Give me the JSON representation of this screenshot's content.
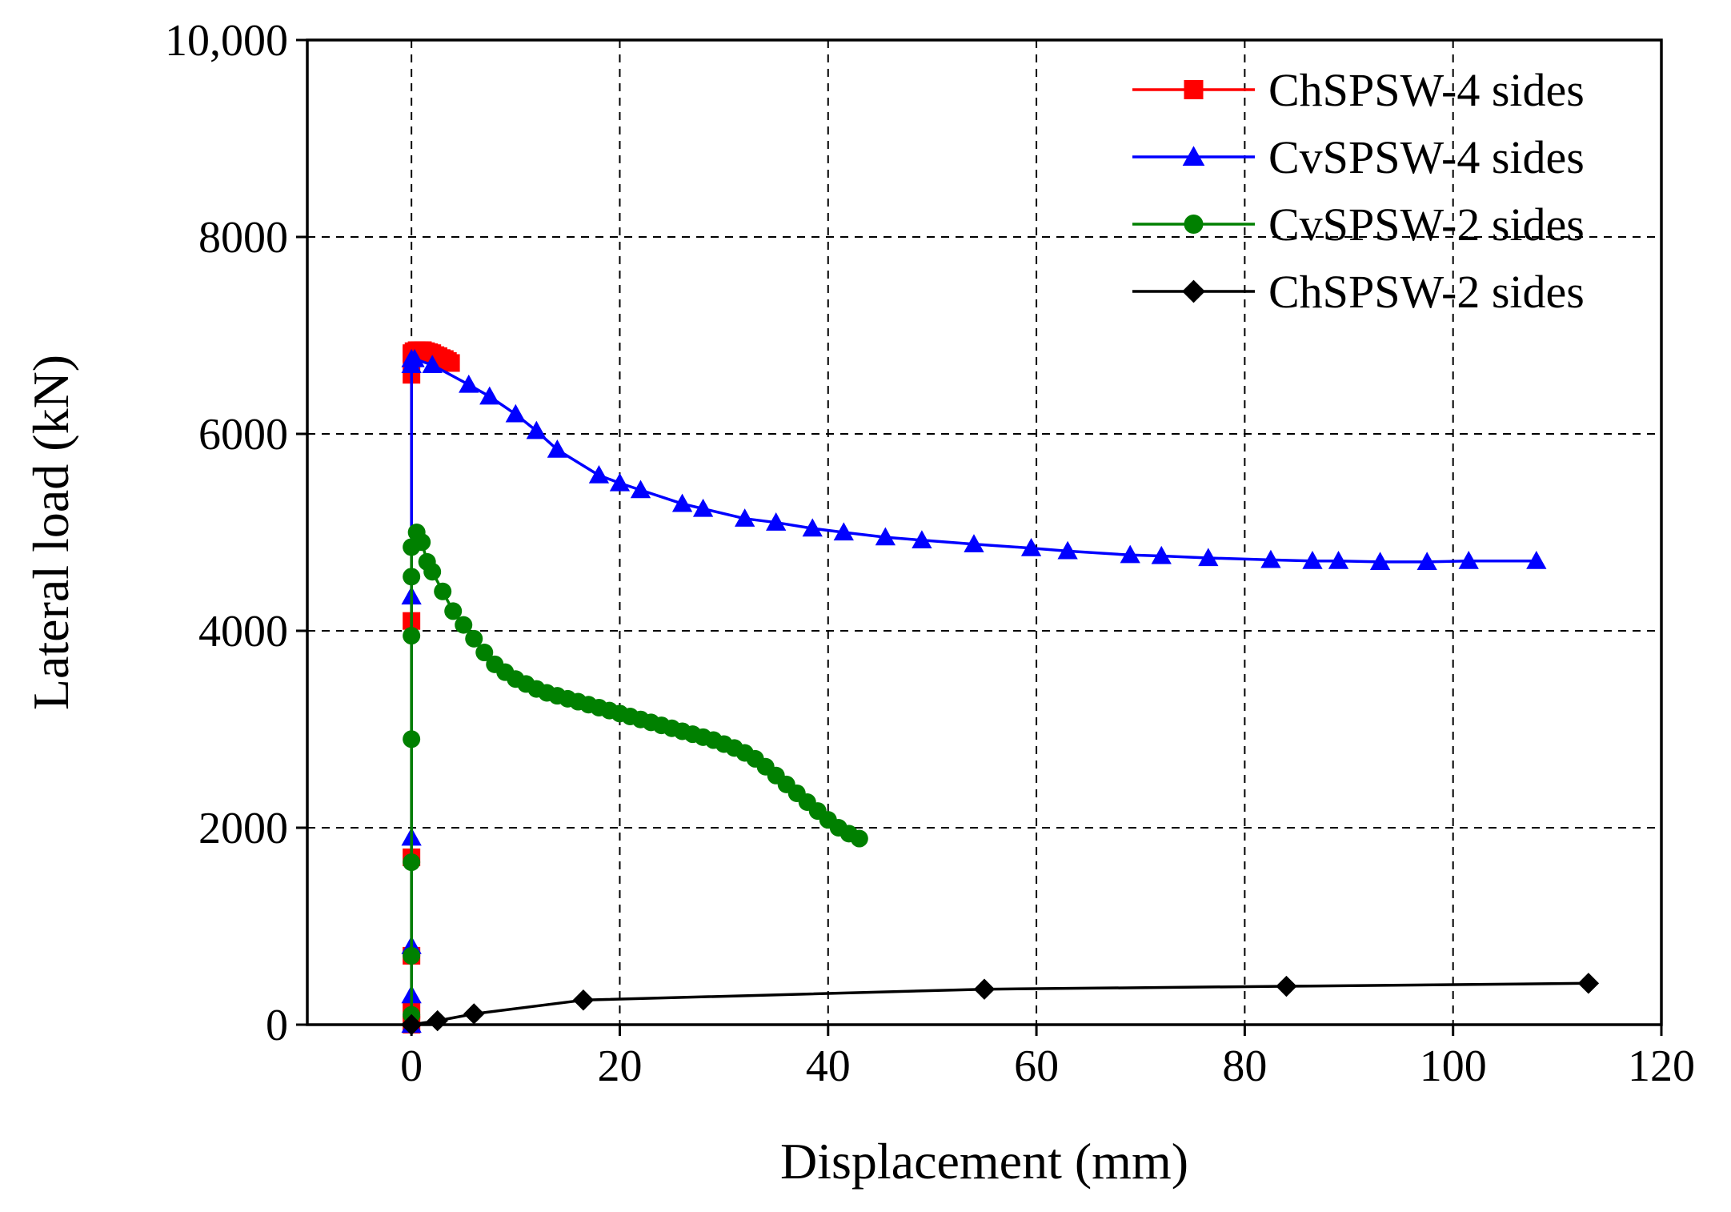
{
  "chart_data": {
    "type": "line",
    "xlabel": "Displacement (mm)",
    "ylabel": "Lateral load (kN)",
    "xlim": [
      -10,
      120
    ],
    "ylim": [
      0,
      10000
    ],
    "xticks": [
      0,
      20,
      40,
      60,
      80,
      100,
      120
    ],
    "xtick_labels": [
      "0",
      "20",
      "40",
      "60",
      "80",
      "100",
      "120"
    ],
    "yticks": [
      0,
      2000,
      4000,
      6000,
      8000,
      10000
    ],
    "ytick_labels": [
      "0",
      "2000",
      "4000",
      "6000",
      "8000",
      "10,000"
    ],
    "grid": true,
    "legend_position": "top-right",
    "series": [
      {
        "name": "ChSPSW-4 sides",
        "color": "#ff0000",
        "marker": "square",
        "x": [
          0,
          0,
          0,
          0,
          0,
          0,
          0,
          0,
          0.2,
          0.5,
          0.8,
          1.1,
          1.4,
          1.7,
          2.0,
          2.3,
          2.6,
          2.9,
          3.2,
          3.5,
          3.8
        ],
        "y": [
          0,
          150,
          700,
          1700,
          4100,
          6600,
          6800,
          6820,
          6840,
          6850,
          6850,
          6850,
          6840,
          6830,
          6820,
          6800,
          6790,
          6770,
          6760,
          6740,
          6720
        ]
      },
      {
        "name": "CvSPSW-4 sides",
        "color": "#0000ff",
        "marker": "triangle",
        "x": [
          0,
          0,
          0,
          0,
          0,
          0,
          0,
          0.3,
          2,
          5.5,
          7.5,
          10,
          12,
          14,
          18,
          20,
          22,
          26,
          28,
          32,
          35,
          38.5,
          41.5,
          45.5,
          49,
          54,
          59.5,
          63,
          69,
          72,
          76.5,
          82.5,
          86.5,
          89,
          93,
          97.5,
          101.5,
          108
        ],
        "y": [
          0,
          300,
          800,
          1900,
          4350,
          6700,
          6760,
          6760,
          6700,
          6500,
          6380,
          6200,
          6030,
          5840,
          5580,
          5500,
          5430,
          5290,
          5240,
          5140,
          5100,
          5040,
          5000,
          4950,
          4920,
          4880,
          4840,
          4810,
          4770,
          4760,
          4740,
          4720,
          4710,
          4710,
          4700,
          4700,
          4710,
          4710
        ]
      },
      {
        "name": "CvSPSW-2 sides",
        "color": "#008000",
        "marker": "circle",
        "x": [
          0,
          0,
          0,
          0,
          0,
          0,
          0,
          0.5,
          1,
          1.5,
          2,
          3,
          4,
          5,
          6,
          7,
          8,
          9,
          10,
          11,
          12,
          13,
          14,
          15,
          16,
          17,
          18,
          19,
          20,
          21,
          22,
          23,
          24,
          25,
          26,
          27,
          28,
          29,
          30,
          31,
          32,
          33,
          34,
          35,
          36,
          37,
          38,
          39,
          40,
          41,
          42,
          43
        ],
        "y": [
          100,
          700,
          1650,
          2900,
          3950,
          4550,
          4850,
          5000,
          4900,
          4700,
          4600,
          4400,
          4200,
          4060,
          3920,
          3780,
          3660,
          3580,
          3510,
          3460,
          3410,
          3370,
          3340,
          3310,
          3280,
          3250,
          3220,
          3190,
          3160,
          3130,
          3100,
          3070,
          3040,
          3010,
          2980,
          2950,
          2920,
          2890,
          2850,
          2810,
          2760,
          2700,
          2620,
          2530,
          2440,
          2350,
          2260,
          2170,
          2080,
          2000,
          1940,
          1890
        ]
      },
      {
        "name": "ChSPSW-2 sides",
        "color": "#000000",
        "marker": "diamond",
        "x": [
          0,
          2.5,
          6,
          16.5,
          55,
          84,
          113
        ],
        "y": [
          0,
          40,
          110,
          250,
          360,
          390,
          420
        ]
      }
    ]
  }
}
